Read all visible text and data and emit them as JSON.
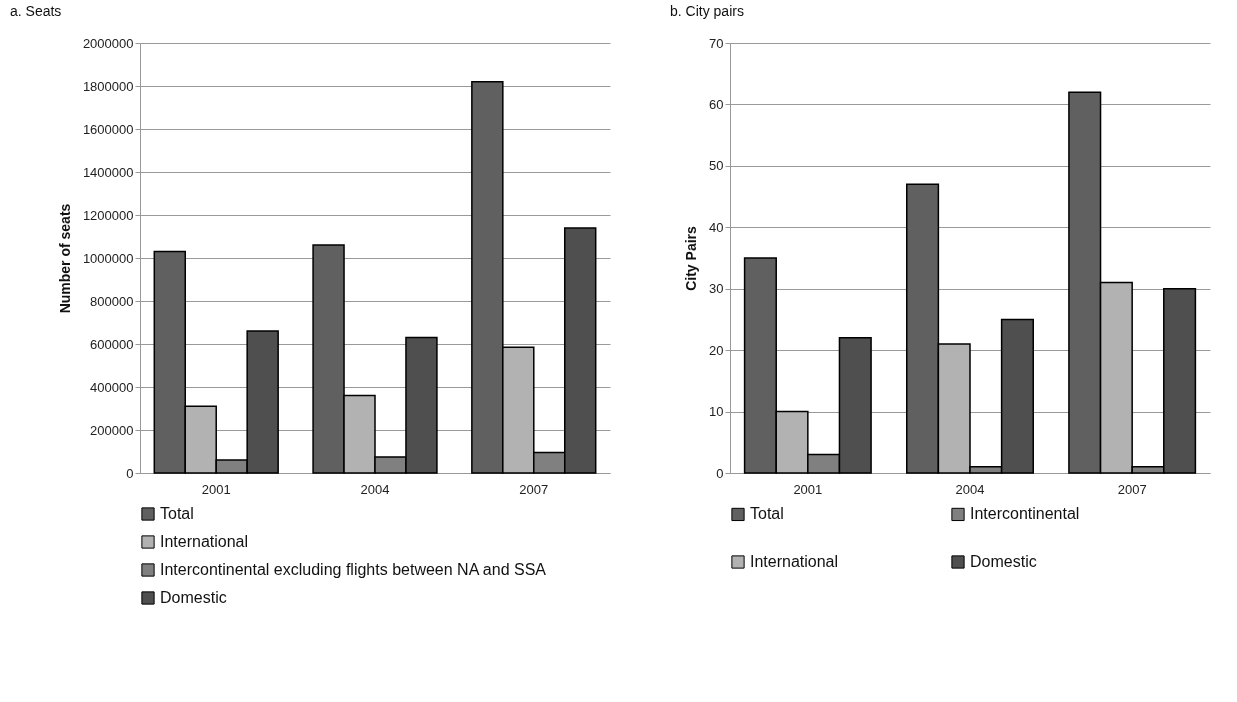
{
  "chart_data": [
    {
      "type": "bar",
      "title": "a. Seats",
      "ylabel": "Number of seats",
      "categories": [
        "2001",
        "2004",
        "2007"
      ],
      "series": [
        {
          "name": "Total",
          "color": "#606060",
          "values": [
            1030000,
            1060000,
            1820000
          ]
        },
        {
          "name": "International",
          "color": "#b2b2b2",
          "values": [
            310000,
            360000,
            585000
          ]
        },
        {
          "name": "Intercontinental excluding flights between NA and SSA",
          "color": "#808080",
          "values": [
            60000,
            75000,
            95000
          ]
        },
        {
          "name": "Domestic",
          "color": "#4f4f4f",
          "values": [
            660000,
            630000,
            1140000
          ]
        }
      ],
      "ylim": [
        0,
        2000000
      ],
      "yticks": [
        0,
        200000,
        400000,
        600000,
        800000,
        1000000,
        1200000,
        1400000,
        1600000,
        1800000,
        2000000
      ],
      "grid": "y",
      "legend": "bottom"
    },
    {
      "type": "bar",
      "title": "b. City pairs",
      "ylabel": "City Pairs",
      "categories": [
        "2001",
        "2004",
        "2007"
      ],
      "series": [
        {
          "name": "Total",
          "color": "#606060",
          "values": [
            35,
            47,
            62
          ]
        },
        {
          "name": "International",
          "color": "#b2b2b2",
          "values": [
            10,
            21,
            31
          ]
        },
        {
          "name": "Intercontinental",
          "color": "#808080",
          "values": [
            3,
            1,
            1
          ]
        },
        {
          "name": "Domestic",
          "color": "#4f4f4f",
          "values": [
            22,
            25,
            30
          ]
        }
      ],
      "ylim": [
        0,
        70
      ],
      "yticks": [
        0,
        10,
        20,
        30,
        40,
        50,
        60,
        70
      ],
      "grid": "y",
      "legend": "bottom"
    }
  ]
}
